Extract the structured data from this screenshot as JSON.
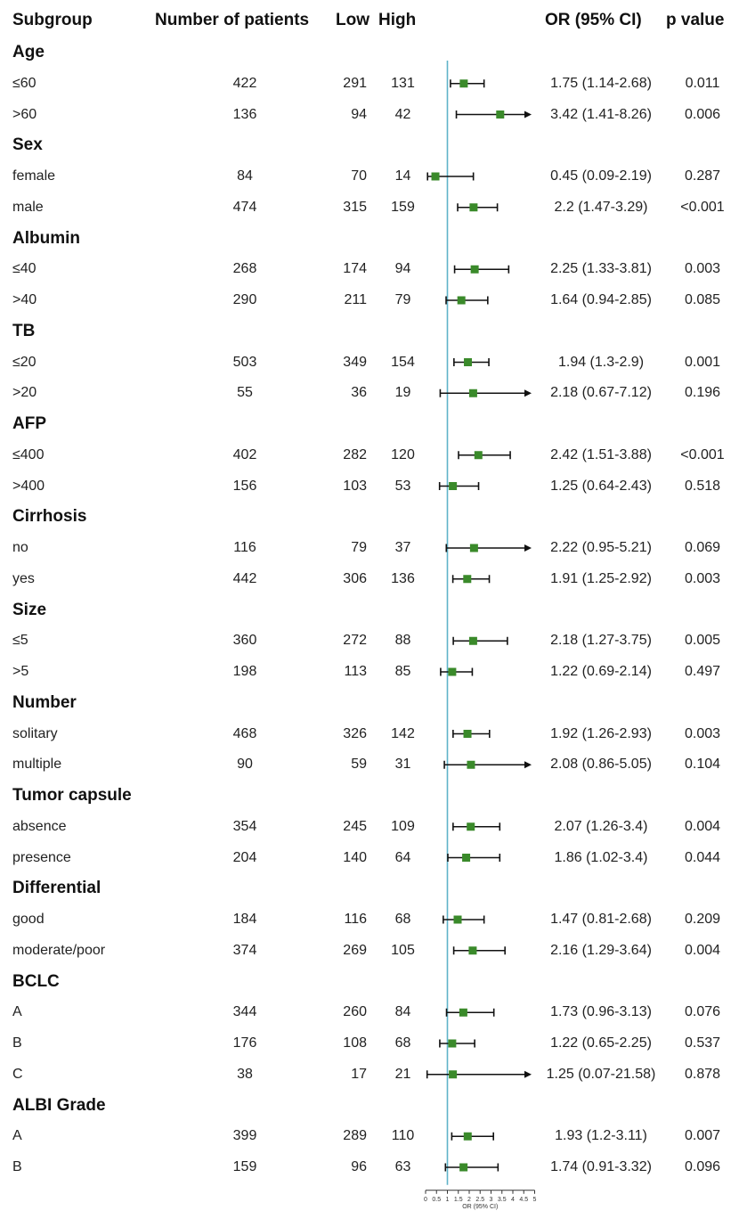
{
  "colors": {
    "refline": "#5fb3c9",
    "marker": "#3a8a2a",
    "line": "#111111"
  },
  "chart_data": {
    "type": "forest",
    "headers": {
      "subgroup": "Subgroup",
      "n": "Number of patients",
      "low": "Low",
      "high": "High",
      "or": "OR (95% CI)",
      "p": "p value"
    },
    "xlabel": "OR (95% CI)",
    "xlim": [
      0,
      5
    ],
    "ticks": [
      "0",
      "0.5",
      "1",
      "1.5",
      "2",
      "2.5",
      "3",
      "3.5",
      "4",
      "4.5",
      "5"
    ],
    "ref": 1,
    "groups": [
      {
        "name": "Age",
        "rows": [
          {
            "label": "≤60",
            "n": "422",
            "low": "291",
            "high": "131",
            "or": 1.75,
            "lo": 1.14,
            "hi": 2.68,
            "or_text": "1.75 (1.14-2.68)",
            "p": "0.011"
          },
          {
            "label": ">60",
            "n": "136",
            "low": "94",
            "high": "42",
            "or": 3.42,
            "lo": 1.41,
            "hi": 8.26,
            "or_text": "3.42 (1.41-8.26)",
            "p": "0.006"
          }
        ]
      },
      {
        "name": "Sex",
        "rows": [
          {
            "label": "female",
            "n": "84",
            "low": "70",
            "high": "14",
            "or": 0.45,
            "lo": 0.09,
            "hi": 2.19,
            "or_text": "0.45 (0.09-2.19)",
            "p": "0.287"
          },
          {
            "label": "male",
            "n": "474",
            "low": "315",
            "high": "159",
            "or": 2.2,
            "lo": 1.47,
            "hi": 3.29,
            "or_text": "2.2 (1.47-3.29)",
            "p": "<0.001"
          }
        ]
      },
      {
        "name": "Albumin",
        "rows": [
          {
            "label": "≤40",
            "n": "268",
            "low": "174",
            "high": "94",
            "or": 2.25,
            "lo": 1.33,
            "hi": 3.81,
            "or_text": "2.25 (1.33-3.81)",
            "p": "0.003"
          },
          {
            "label": ">40",
            "n": "290",
            "low": "211",
            "high": "79",
            "or": 1.64,
            "lo": 0.94,
            "hi": 2.85,
            "or_text": "1.64 (0.94-2.85)",
            "p": "0.085"
          }
        ]
      },
      {
        "name": "TB",
        "rows": [
          {
            "label": "≤20",
            "n": "503",
            "low": "349",
            "high": "154",
            "or": 1.94,
            "lo": 1.3,
            "hi": 2.9,
            "or_text": "1.94 (1.3-2.9)",
            "p": "0.001"
          },
          {
            "label": ">20",
            "n": "55",
            "low": "36",
            "high": "19",
            "or": 2.18,
            "lo": 0.67,
            "hi": 7.12,
            "or_text": "2.18 (0.67-7.12)",
            "p": "0.196"
          }
        ]
      },
      {
        "name": "AFP",
        "rows": [
          {
            "label": "≤400",
            "n": "402",
            "low": "282",
            "high": "120",
            "or": 2.42,
            "lo": 1.51,
            "hi": 3.88,
            "or_text": "2.42 (1.51-3.88)",
            "p": "<0.001"
          },
          {
            "label": ">400",
            "n": "156",
            "low": "103",
            "high": "53",
            "or": 1.25,
            "lo": 0.64,
            "hi": 2.43,
            "or_text": "1.25 (0.64-2.43)",
            "p": "0.518"
          }
        ]
      },
      {
        "name": "Cirrhosis",
        "rows": [
          {
            "label": "no",
            "n": "116",
            "low": "79",
            "high": "37",
            "or": 2.22,
            "lo": 0.95,
            "hi": 5.21,
            "or_text": "2.22 (0.95-5.21)",
            "p": "0.069"
          },
          {
            "label": "yes",
            "n": "442",
            "low": "306",
            "high": "136",
            "or": 1.91,
            "lo": 1.25,
            "hi": 2.92,
            "or_text": "1.91 (1.25-2.92)",
            "p": "0.003"
          }
        ]
      },
      {
        "name": "Size",
        "rows": [
          {
            "label": "≤5",
            "n": "360",
            "low": "272",
            "high": "88",
            "or": 2.18,
            "lo": 1.27,
            "hi": 3.75,
            "or_text": "2.18 (1.27-3.75)",
            "p": "0.005"
          },
          {
            "label": ">5",
            "n": "198",
            "low": "113",
            "high": "85",
            "or": 1.22,
            "lo": 0.69,
            "hi": 2.14,
            "or_text": "1.22 (0.69-2.14)",
            "p": "0.497"
          }
        ]
      },
      {
        "name": "Number",
        "rows": [
          {
            "label": "solitary",
            "n": "468",
            "low": "326",
            "high": "142",
            "or": 1.92,
            "lo": 1.26,
            "hi": 2.93,
            "or_text": "1.92 (1.26-2.93)",
            "p": "0.003"
          },
          {
            "label": "multiple",
            "n": "90",
            "low": "59",
            "high": "31",
            "or": 2.08,
            "lo": 0.86,
            "hi": 5.05,
            "or_text": "2.08 (0.86-5.05)",
            "p": "0.104"
          }
        ]
      },
      {
        "name": "Tumor capsule",
        "rows": [
          {
            "label": "absence",
            "n": "354",
            "low": "245",
            "high": "109",
            "or": 2.07,
            "lo": 1.26,
            "hi": 3.4,
            "or_text": "2.07 (1.26-3.4)",
            "p": "0.004"
          },
          {
            "label": "presence",
            "n": "204",
            "low": "140",
            "high": "64",
            "or": 1.86,
            "lo": 1.02,
            "hi": 3.4,
            "or_text": "1.86 (1.02-3.4)",
            "p": "0.044"
          }
        ]
      },
      {
        "name": "Differential",
        "rows": [
          {
            "label": "good",
            "n": "184",
            "low": "116",
            "high": "68",
            "or": 1.47,
            "lo": 0.81,
            "hi": 2.68,
            "or_text": "1.47 (0.81-2.68)",
            "p": "0.209"
          },
          {
            "label": "moderate/poor",
            "n": "374",
            "low": "269",
            "high": "105",
            "or": 2.16,
            "lo": 1.29,
            "hi": 3.64,
            "or_text": "2.16 (1.29-3.64)",
            "p": "0.004"
          }
        ]
      },
      {
        "name": "BCLC",
        "rows": [
          {
            "label": "A",
            "n": "344",
            "low": "260",
            "high": "84",
            "or": 1.73,
            "lo": 0.96,
            "hi": 3.13,
            "or_text": "1.73 (0.96-3.13)",
            "p": "0.076"
          },
          {
            "label": "B",
            "n": "176",
            "low": "108",
            "high": "68",
            "or": 1.22,
            "lo": 0.65,
            "hi": 2.25,
            "or_text": "1.22 (0.65-2.25)",
            "p": "0.537"
          },
          {
            "label": "C",
            "n": "38",
            "low": "17",
            "high": "21",
            "or": 1.25,
            "lo": 0.07,
            "hi": 21.58,
            "or_text": "1.25 (0.07-21.58)",
            "p": "0.878"
          }
        ]
      },
      {
        "name": "ALBI Grade",
        "rows": [
          {
            "label": "A",
            "n": "399",
            "low": "289",
            "high": "110",
            "or": 1.93,
            "lo": 1.2,
            "hi": 3.11,
            "or_text": "1.93 (1.2-3.11)",
            "p": "0.007"
          },
          {
            "label": "B",
            "n": "159",
            "low": "96",
            "high": "63",
            "or": 1.74,
            "lo": 0.91,
            "hi": 3.32,
            "or_text": "1.74 (0.91-3.32)",
            "p": "0.096"
          }
        ]
      }
    ]
  }
}
